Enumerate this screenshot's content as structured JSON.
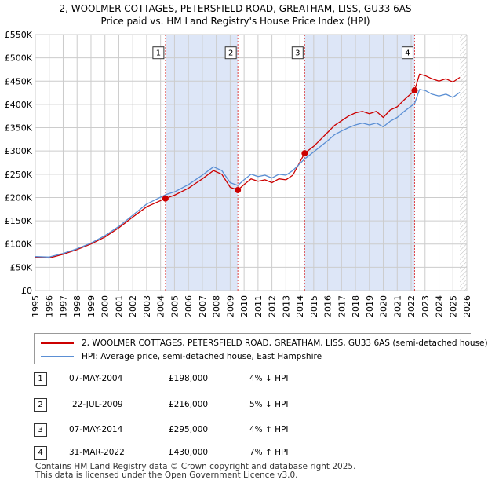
{
  "chart_data": {
    "type": "line",
    "title": "2, WOOLMER COTTAGES, PETERSFIELD ROAD, GREATHAM, LISS, GU33 6AS",
    "subtitle": "Price paid vs. HM Land Registry's House Price Index (HPI)",
    "xlim": [
      1995,
      2026
    ],
    "ylim": [
      0,
      550000
    ],
    "x_ticks": [
      "1995",
      "1996",
      "1997",
      "1998",
      "1999",
      "2000",
      "2001",
      "2002",
      "2003",
      "2004",
      "2005",
      "2006",
      "2007",
      "2008",
      "2009",
      "2010",
      "2011",
      "2012",
      "2013",
      "2014",
      "2015",
      "2016",
      "2017",
      "2018",
      "2019",
      "2020",
      "2021",
      "2022",
      "2023",
      "2024",
      "2025",
      "2026"
    ],
    "y_ticks": [
      {
        "value": 0,
        "label": "£0"
      },
      {
        "value": 50000,
        "label": "£50K"
      },
      {
        "value": 100000,
        "label": "£100K"
      },
      {
        "value": 150000,
        "label": "£150K"
      },
      {
        "value": 200000,
        "label": "£200K"
      },
      {
        "value": 250000,
        "label": "£250K"
      },
      {
        "value": 300000,
        "label": "£300K"
      },
      {
        "value": 350000,
        "label": "£350K"
      },
      {
        "value": 400000,
        "label": "£400K"
      },
      {
        "value": 450000,
        "label": "£450K"
      },
      {
        "value": 500000,
        "label": "£500K"
      },
      {
        "value": 550000,
        "label": "£550K"
      }
    ],
    "series": [
      {
        "name": "2, WOOLMER COTTAGES, PETERSFIELD ROAD, GREATHAM, LISS, GU33 6AS (semi-detached house)",
        "color": "#cc0000",
        "points": [
          [
            1995.0,
            72000
          ],
          [
            1996.0,
            70000
          ],
          [
            1997.0,
            78000
          ],
          [
            1998.0,
            88000
          ],
          [
            1999.0,
            100000
          ],
          [
            2000.0,
            115000
          ],
          [
            2001.0,
            135000
          ],
          [
            2002.0,
            158000
          ],
          [
            2003.0,
            180000
          ],
          [
            2004.35,
            198000
          ],
          [
            2005.0,
            205000
          ],
          [
            2006.0,
            220000
          ],
          [
            2007.0,
            240000
          ],
          [
            2007.8,
            258000
          ],
          [
            2008.4,
            250000
          ],
          [
            2009.0,
            222000
          ],
          [
            2009.55,
            216000
          ],
          [
            2010.0,
            228000
          ],
          [
            2010.5,
            240000
          ],
          [
            2011.0,
            235000
          ],
          [
            2011.5,
            238000
          ],
          [
            2012.0,
            232000
          ],
          [
            2012.5,
            240000
          ],
          [
            2013.0,
            238000
          ],
          [
            2013.5,
            248000
          ],
          [
            2014.35,
            295000
          ],
          [
            2015.0,
            310000
          ],
          [
            2015.5,
            325000
          ],
          [
            2016.0,
            340000
          ],
          [
            2016.5,
            355000
          ],
          [
            2017.0,
            365000
          ],
          [
            2017.5,
            375000
          ],
          [
            2018.0,
            382000
          ],
          [
            2018.5,
            385000
          ],
          [
            2019.0,
            380000
          ],
          [
            2019.5,
            385000
          ],
          [
            2020.0,
            372000
          ],
          [
            2020.5,
            388000
          ],
          [
            2021.0,
            395000
          ],
          [
            2021.5,
            410000
          ],
          [
            2022.25,
            430000
          ],
          [
            2022.6,
            465000
          ],
          [
            2023.0,
            462000
          ],
          [
            2023.5,
            455000
          ],
          [
            2024.0,
            450000
          ],
          [
            2024.5,
            455000
          ],
          [
            2025.0,
            448000
          ],
          [
            2025.5,
            458000
          ]
        ]
      },
      {
        "name": "HPI: Average price, semi-detached house, East Hampshire",
        "color": "#5b8fd4",
        "points": [
          [
            1995.0,
            73000
          ],
          [
            1996.0,
            72000
          ],
          [
            1997.0,
            80000
          ],
          [
            1998.0,
            90000
          ],
          [
            1999.0,
            102000
          ],
          [
            2000.0,
            118000
          ],
          [
            2001.0,
            138000
          ],
          [
            2002.0,
            162000
          ],
          [
            2003.0,
            186000
          ],
          [
            2004.35,
            206000
          ],
          [
            2005.0,
            212000
          ],
          [
            2006.0,
            228000
          ],
          [
            2007.0,
            248000
          ],
          [
            2007.8,
            266000
          ],
          [
            2008.4,
            258000
          ],
          [
            2009.0,
            232000
          ],
          [
            2009.55,
            226000
          ],
          [
            2010.0,
            238000
          ],
          [
            2010.5,
            250000
          ],
          [
            2011.0,
            245000
          ],
          [
            2011.5,
            248000
          ],
          [
            2012.0,
            242000
          ],
          [
            2012.5,
            250000
          ],
          [
            2013.0,
            248000
          ],
          [
            2013.5,
            258000
          ],
          [
            2014.35,
            283000
          ],
          [
            2015.0,
            298000
          ],
          [
            2015.5,
            310000
          ],
          [
            2016.0,
            322000
          ],
          [
            2016.5,
            335000
          ],
          [
            2017.0,
            343000
          ],
          [
            2017.5,
            350000
          ],
          [
            2018.0,
            356000
          ],
          [
            2018.5,
            360000
          ],
          [
            2019.0,
            356000
          ],
          [
            2019.5,
            360000
          ],
          [
            2020.0,
            352000
          ],
          [
            2020.5,
            364000
          ],
          [
            2021.0,
            372000
          ],
          [
            2021.5,
            385000
          ],
          [
            2022.25,
            402000
          ],
          [
            2022.6,
            432000
          ],
          [
            2023.0,
            430000
          ],
          [
            2023.5,
            422000
          ],
          [
            2024.0,
            418000
          ],
          [
            2024.5,
            422000
          ],
          [
            2025.0,
            415000
          ],
          [
            2025.5,
            426000
          ]
        ]
      }
    ],
    "sales": [
      {
        "label": "1",
        "date": "07-MAY-2004",
        "x": 2004.35,
        "price_value": 198000,
        "price": "£198,000",
        "hpi": "4% ↓ HPI"
      },
      {
        "label": "2",
        "date": "22-JUL-2009",
        "x": 2009.55,
        "price_value": 216000,
        "price": "£216,000",
        "hpi": "5% ↓ HPI"
      },
      {
        "label": "3",
        "date": "07-MAY-2014",
        "x": 2014.35,
        "price_value": 295000,
        "price": "£295,000",
        "hpi": "4% ↑ HPI"
      },
      {
        "label": "4",
        "date": "31-MAR-2022",
        "x": 2022.25,
        "price_value": 430000,
        "price": "£430,000",
        "hpi": "7% ↑ HPI"
      }
    ],
    "sale_marker_label_value": 510000,
    "shaded_periods": [
      [
        2004.35,
        2009.55
      ],
      [
        2014.35,
        2022.25
      ]
    ],
    "forecast_start": 2025.5
  },
  "legend": {
    "property": "2, WOOLMER COTTAGES, PETERSFIELD ROAD, GREATHAM, LISS, GU33 6AS (semi-detached house)",
    "hpi": "HPI: Average price, semi-detached house, East Hampshire"
  },
  "footer": {
    "line1": "Contains HM Land Registry data © Crown copyright and database right 2025.",
    "line2": "This data is licensed under the Open Government Licence v3.0."
  },
  "colors": {
    "property": "#cc0000",
    "hpi": "#5b8fd4",
    "shade": "#dde6f7",
    "grid": "#cccccc"
  }
}
